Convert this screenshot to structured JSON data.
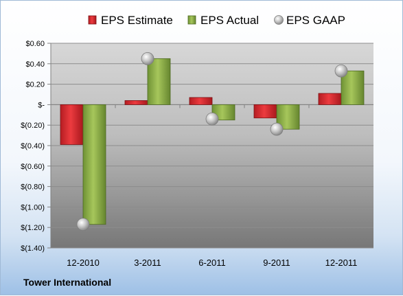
{
  "footer": {
    "company": "Tower International"
  },
  "chart_data": {
    "type": "bar",
    "categories": [
      "12-2010",
      "3-2011",
      "6-2011",
      "9-2011",
      "12-2011"
    ],
    "series": [
      {
        "name": "EPS Estimate",
        "kind": "bar",
        "color": "#d9262b",
        "values": [
          -0.39,
          0.04,
          0.07,
          -0.13,
          0.11
        ]
      },
      {
        "name": "EPS Actual",
        "kind": "bar",
        "color": "#8fb34a",
        "values": [
          -1.17,
          0.45,
          -0.15,
          -0.24,
          0.33
        ]
      },
      {
        "name": "EPS GAAP",
        "kind": "marker",
        "color": "#b8b8b8",
        "values": [
          -1.17,
          0.45,
          -0.14,
          -0.24,
          0.33
        ]
      }
    ],
    "yticks": [
      0.6,
      0.4,
      0.2,
      0,
      -0.2,
      -0.4,
      -0.6,
      -0.8,
      -1.0,
      -1.2,
      -1.4
    ],
    "ytick_labels": [
      "$0.60",
      "$0.40",
      "$0.20",
      "$-",
      "$(0.20)",
      "$(0.40)",
      "$(0.60)",
      "$(0.80)",
      "$(1.00)",
      "$(1.20)",
      "$(1.40)"
    ],
    "ylim": [
      -1.4,
      0.6
    ],
    "grid": true,
    "legend_position": "top"
  }
}
